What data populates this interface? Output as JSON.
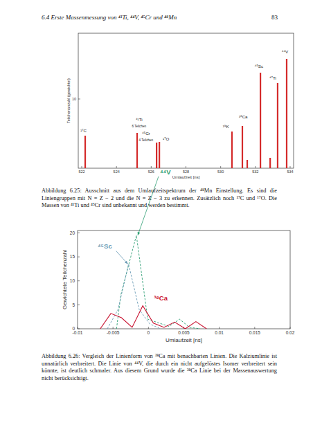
{
  "header": {
    "title": "6.4 Erste Massenmessung von ⁴¹Ti, ⁴⁴V, ⁴⁵Cr und ⁴⁸Mn",
    "page": "83"
  },
  "chart_data": [
    {
      "type": "bar",
      "x_label": "Umlaufzeit [ns]",
      "y_label": "Teilchenanzahl (gewichtet)",
      "x": [
        522.2,
        525.19,
        526.31,
        526.47,
        530.65,
        531.25,
        531.53,
        532.29,
        532.85,
        533.28,
        533.8
      ],
      "values": [
        4.7,
        5.1,
        3.7,
        3.8,
        5.3,
        6.1,
        1.2,
        13.8,
        1.5,
        12.3,
        15.8
      ],
      "color": "#d42a2a",
      "xlim": [
        521.8,
        534.2
      ],
      "xticks": [
        522,
        524,
        526,
        528,
        530,
        532,
        534
      ],
      "ylim": [
        0,
        19.5
      ],
      "yticks": [
        10
      ],
      "annotations": [
        {
          "text": "¹⁷C",
          "x": 522.1,
          "y": 5.2
        },
        {
          "text": "⁴¹Ti",
          "x": 525.3,
          "y": 6.8
        },
        {
          "text": "6 Teilchen",
          "x": 525.3,
          "y": 5.9
        },
        {
          "text": "⁴⁵Cr",
          "x": 525.7,
          "y": 4.8
        },
        {
          "text": "4 Teilchen",
          "x": 525.7,
          "y": 3.9
        },
        {
          "text": "¹⁷O",
          "x": 526.85,
          "y": 4.0
        },
        {
          "text": "³⁹K",
          "x": 530.3,
          "y": 5.8
        },
        {
          "text": "³⁸Ca",
          "x": 531.3,
          "y": 7.2
        },
        {
          "text": "⁴⁵Sc",
          "x": 532.2,
          "y": 14.5
        },
        {
          "text": "⁴⁷Ti",
          "x": 533.0,
          "y": 12.8
        },
        {
          "text": "⁴⁴V",
          "x": 533.7,
          "y": 16.6
        }
      ]
    },
    {
      "type": "line",
      "x_label": "Umlaufzeit [ns]",
      "y_label": "Gewichtete Teilchenzahl",
      "xlim": [
        -0.01,
        0.02
      ],
      "xticks": [
        -0.01,
        -0.005,
        0,
        0.005,
        0.01,
        0.015,
        0.02
      ],
      "ylim": [
        0,
        20.5
      ],
      "yticks": [
        0,
        5,
        10,
        15,
        20
      ],
      "series": [
        {
          "name": "⁴⁴V",
          "color": "#2e9e74",
          "line_style": "dashed",
          "x": [
            -0.0045,
            -0.0039,
            -0.0017,
            -0.0001,
            0.0013,
            0.0029,
            0.0044,
            0.0058,
            0.0073
          ],
          "values": [
            0,
            7,
            19.5,
            2,
            1.3,
            0.5,
            2,
            0.3,
            0
          ]
        },
        {
          "name": "⁴⁵Sc",
          "color": "#6a9bb5",
          "line_style": "dashed",
          "x": [
            -0.0058,
            -0.0043,
            -0.0028,
            -0.0013,
            0.0002,
            0.0017
          ],
          "values": [
            0,
            4,
            13.5,
            4,
            1,
            0
          ]
        },
        {
          "name": "³⁸Ca",
          "color": "#c8102e",
          "line_style": "solid",
          "x": [
            -0.0068,
            -0.0053,
            -0.0038,
            -0.0023,
            -0.0008,
            0.0007,
            0.0022,
            0.0037,
            0.0052,
            0.0067,
            0.0082
          ],
          "values": [
            0,
            3.2,
            2.3,
            0.3,
            4.8,
            1.2,
            0.3,
            1.4,
            0,
            1.5,
            0
          ]
        }
      ]
    }
  ],
  "captions": [
    "Abbildung 6.25: Ausschnitt aus dem Umlaufzeitspektrum der ⁴⁸Mn Einstellung. Es sind die Liniengruppen mit N = Z − 2 und die N = Z − 3 zu erkennen. Zusätzlich noch ¹⁷C und ¹⁷O. Die Massen von ⁴¹Ti und ⁴⁵Cr sind unbekannt und werden bestimmt.",
    "Abbildung 6.26: Vergleich der Linienform von ³⁸Ca mit benachbarten Linien. Die Kalziumlinie ist unnatürlich verbreitert. Die Linie von ⁴⁴V, die durch ein nicht aufgelöstes Isomer verbreitert sein könnte, ist deutlich schmaler. Aus diesem Grund wurde die ³⁸Ca Linie bei der Massenauswertung nicht berücksichtigt."
  ]
}
